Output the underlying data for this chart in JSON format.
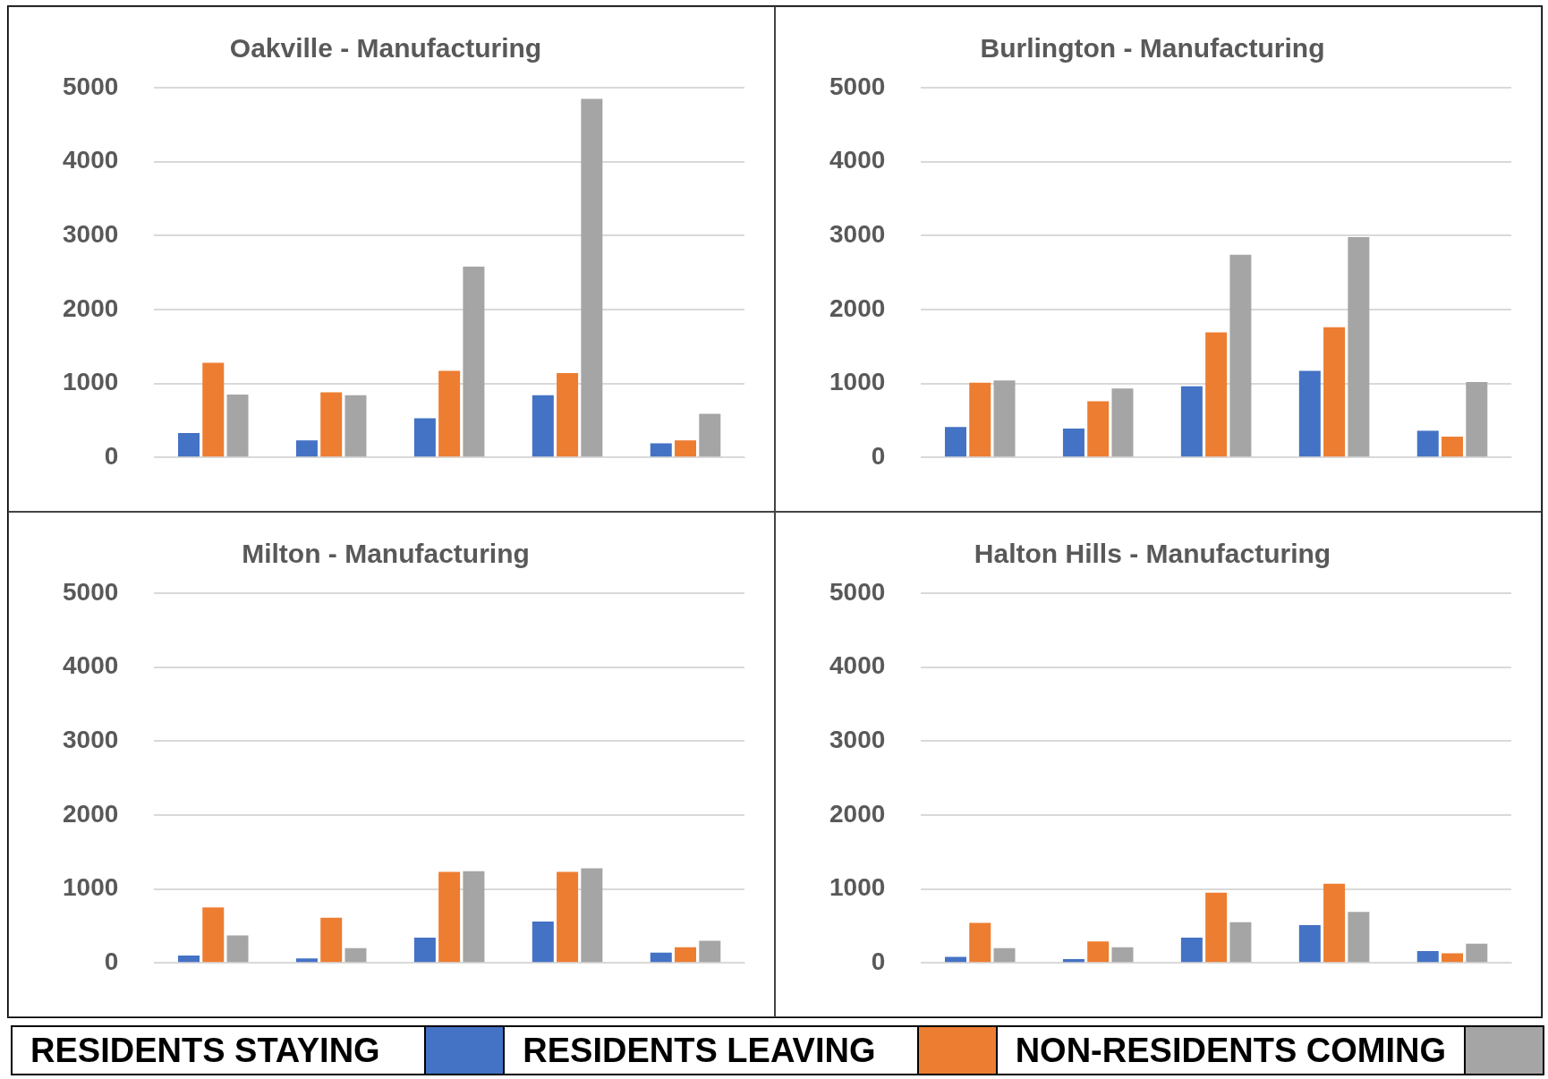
{
  "chart_data": [
    {
      "type": "bar",
      "title": "Oakville - Manufacturing",
      "categories": [
        null,
        null,
        null,
        null,
        null
      ],
      "ylim": [
        0,
        5000
      ],
      "yticks": [
        0,
        1000,
        2000,
        3000,
        4000,
        5000
      ],
      "grid": "y",
      "legend": "bottom",
      "series": [
        {
          "name": "RESIDENTS STAYING",
          "color": "#4472c4",
          "values": [
            330,
            230,
            530,
            840,
            190
          ]
        },
        {
          "name": "RESIDENTS LEAVING",
          "color": "#ed7d31",
          "values": [
            1280,
            880,
            1170,
            1140,
            230
          ]
        },
        {
          "name": "NON-RESIDENTS COMING",
          "color": "#a5a5a5",
          "values": [
            850,
            840,
            2580,
            4850,
            590
          ]
        }
      ]
    },
    {
      "type": "bar",
      "title": "Burlington - Manufacturing",
      "categories": [
        null,
        null,
        null,
        null,
        null
      ],
      "ylim": [
        0,
        5000
      ],
      "yticks": [
        0,
        1000,
        2000,
        3000,
        4000,
        5000
      ],
      "grid": "y",
      "series": [
        {
          "color": "#4472c4",
          "values": [
            410,
            390,
            960,
            1170,
            360
          ]
        },
        {
          "color": "#ed7d31",
          "values": [
            1010,
            760,
            1690,
            1760,
            280
          ]
        },
        {
          "color": "#a5a5a5",
          "values": [
            1040,
            930,
            2740,
            2980,
            1020
          ]
        }
      ]
    },
    {
      "type": "bar",
      "title": "Milton - Manufacturing",
      "categories": [
        null,
        null,
        null,
        null,
        null
      ],
      "ylim": [
        0,
        5000
      ],
      "yticks": [
        0,
        1000,
        2000,
        3000,
        4000,
        5000
      ],
      "grid": "y",
      "series": [
        {
          "color": "#4472c4",
          "values": [
            100,
            60,
            340,
            560,
            140
          ]
        },
        {
          "color": "#ed7d31",
          "values": [
            750,
            610,
            1230,
            1230,
            210
          ]
        },
        {
          "color": "#a5a5a5",
          "values": [
            370,
            200,
            1240,
            1280,
            300
          ]
        }
      ]
    },
    {
      "type": "bar",
      "title": "Halton Hills - Manufacturing",
      "categories": [
        null,
        null,
        null,
        null,
        null
      ],
      "ylim": [
        0,
        5000
      ],
      "yticks": [
        0,
        1000,
        2000,
        3000,
        4000,
        5000
      ],
      "grid": "y",
      "series": [
        {
          "color": "#4472c4",
          "values": [
            80,
            50,
            340,
            510,
            160
          ]
        },
        {
          "color": "#ed7d31",
          "values": [
            540,
            290,
            950,
            1070,
            130
          ]
        },
        {
          "color": "#a5a5a5",
          "values": [
            200,
            210,
            550,
            690,
            260
          ]
        }
      ]
    }
  ]
}
